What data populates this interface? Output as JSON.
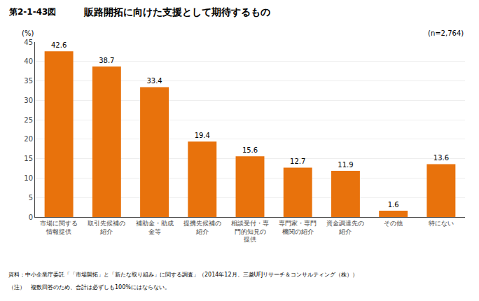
{
  "chart_data": {
    "type": "bar",
    "title": "販路開拓に向けた支援として期待するもの",
    "ylabel": "(%)",
    "annotations": [
      "第2-1-43図",
      "(n=2,764)",
      "資料：中小企業庁委託「「市場開拓」と「新たな取り組み」に関する調査」（2014年12月、三菱UFJリサーチ＆コンサルティング（株））",
      "（注）　複数回答のため、合計は必ずしも100%にはならない。"
    ],
    "categories": [
      "市場に関する\n情報提供",
      "取引先候補の\n紹介",
      "補助金・助成\n金等",
      "提携先候補の\n紹介",
      "相談受付・専\n門的知見の\n提供",
      "専門家・専門\n機関の紹介",
      "資金調達先の\n紹介",
      "その他",
      "特にない"
    ],
    "values": [
      42.6,
      38.7,
      33.4,
      19.4,
      15.6,
      12.7,
      11.9,
      1.6,
      13.6
    ],
    "color": "#E8720C",
    "ylim": [
      0,
      45
    ],
    "yticks": [
      0,
      5,
      10,
      15,
      20,
      25,
      30,
      35,
      40,
      45
    ],
    "grid": true,
    "data_labels": true
  }
}
